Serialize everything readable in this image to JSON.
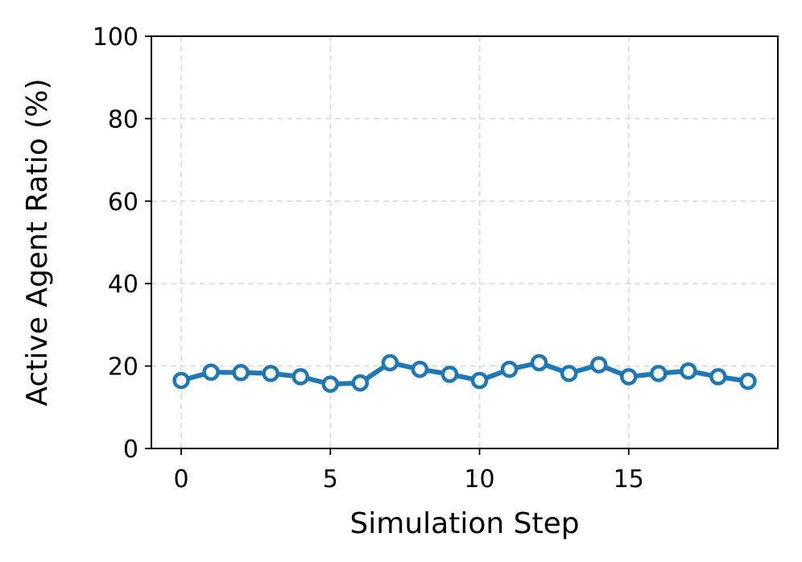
{
  "chart_data": {
    "type": "line",
    "title": "",
    "xlabel": "Simulation Step",
    "ylabel": "Active Agent Ratio (%)",
    "xlim": [
      -1,
      20
    ],
    "ylim": [
      0,
      100
    ],
    "xticks": [
      0,
      5,
      10,
      15
    ],
    "yticks": [
      0,
      20,
      40,
      60,
      80,
      100
    ],
    "grid": true,
    "legend": "none",
    "series": [
      {
        "color": "#1f77b4",
        "marker": "circle-hollow",
        "x": [
          0,
          1,
          2,
          3,
          4,
          5,
          6,
          7,
          8,
          9,
          10,
          11,
          12,
          13,
          14,
          15,
          16,
          17,
          18,
          19
        ],
        "y": [
          16.5,
          18.5,
          18.4,
          18.2,
          17.4,
          15.6,
          15.9,
          20.8,
          19.2,
          18.0,
          16.5,
          19.2,
          20.8,
          18.2,
          20.3,
          17.4,
          18.2,
          18.8,
          17.4,
          16.3
        ]
      }
    ]
  }
}
